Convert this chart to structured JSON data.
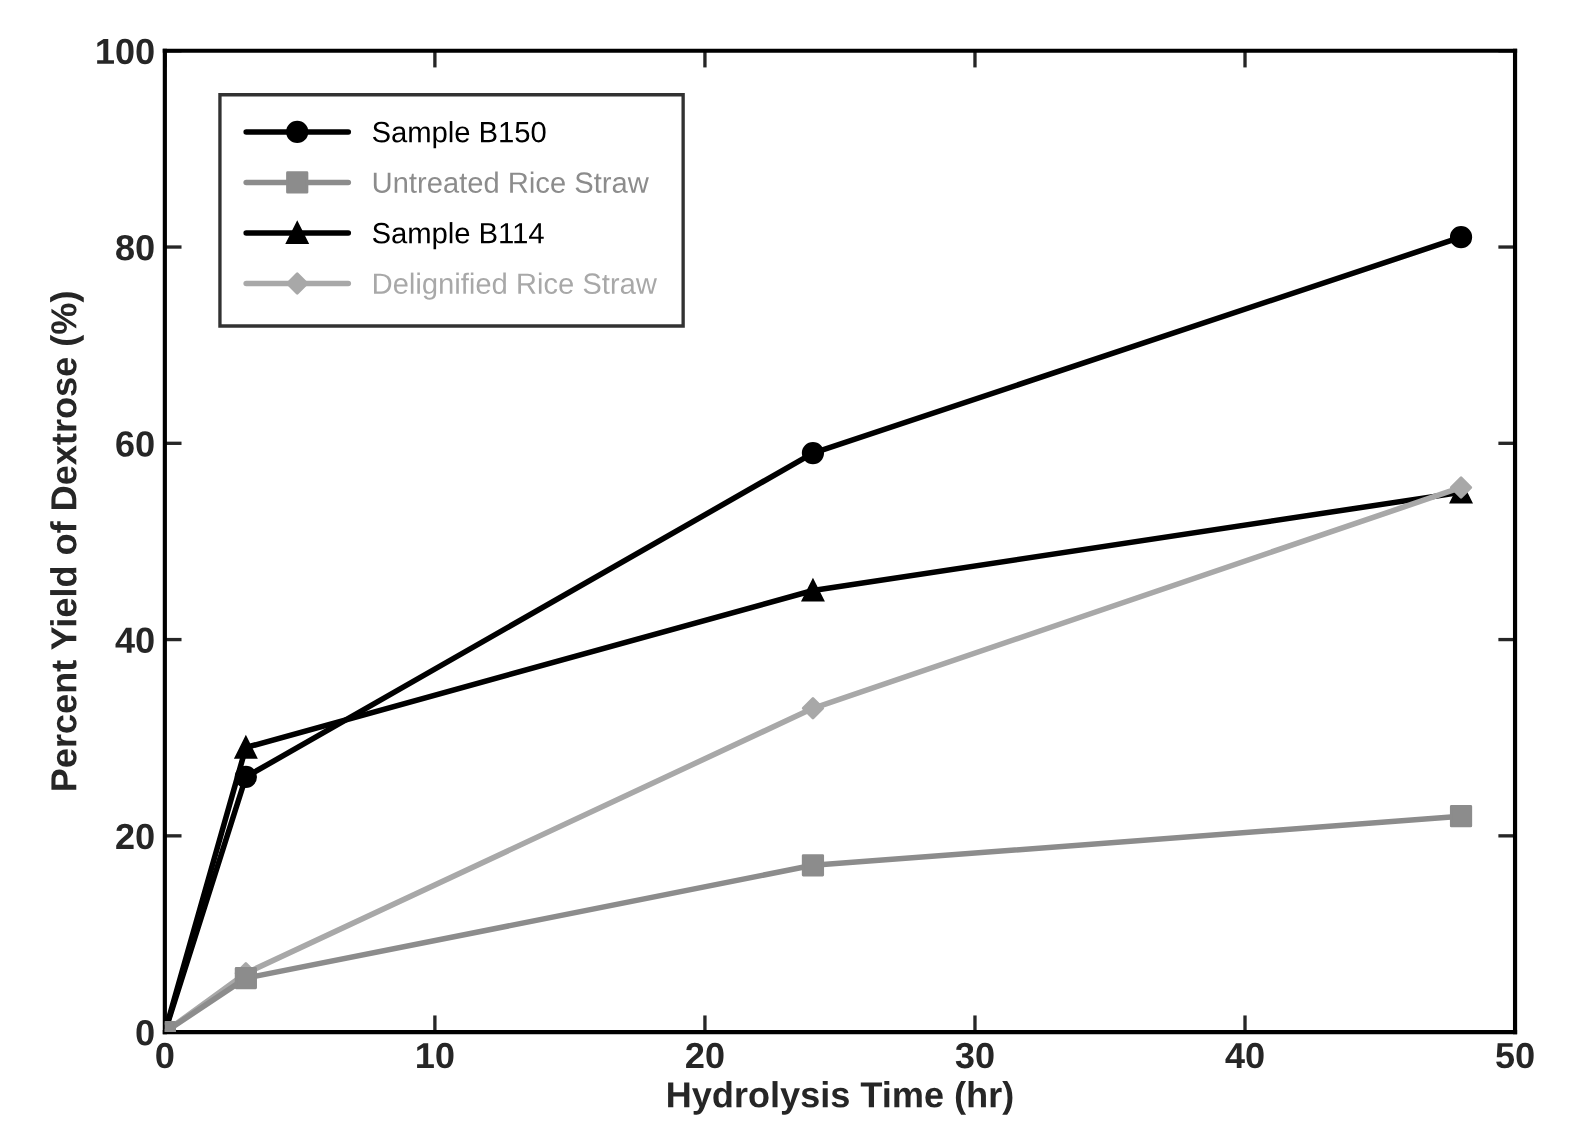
{
  "chart_data": {
    "type": "line",
    "xlabel": "Hydrolysis Time (hr)",
    "ylabel": "Percent Yield of Dextrose (%)",
    "xlim": [
      0,
      50
    ],
    "xticks": [
      0,
      10,
      20,
      30,
      40,
      50
    ],
    "ylim": [
      0,
      100
    ],
    "yticks": [
      0,
      20,
      40,
      60,
      80,
      100
    ],
    "grid": false,
    "legend": "top left",
    "series": [
      {
        "name": "Sample B150",
        "color": "#000000",
        "marker": "circle",
        "x": [
          0,
          3,
          24,
          48
        ],
        "values": [
          0,
          26,
          59,
          81
        ]
      },
      {
        "name": "Untreated Rice Straw",
        "color": "#8c8c8c",
        "marker": "square",
        "x": [
          0,
          3,
          24,
          48
        ],
        "values": [
          0,
          5.5,
          17,
          22
        ]
      },
      {
        "name": "Sample B114",
        "color": "#000000",
        "marker": "triangle",
        "x": [
          0,
          3,
          24,
          48
        ],
        "values": [
          0,
          29,
          45,
          55
        ]
      },
      {
        "name": "Delignified Rice Straw",
        "color": "#a8a8a8",
        "marker": "diamond",
        "x": [
          0,
          3,
          24,
          48
        ],
        "values": [
          0,
          6,
          33,
          55.5
        ]
      }
    ]
  }
}
